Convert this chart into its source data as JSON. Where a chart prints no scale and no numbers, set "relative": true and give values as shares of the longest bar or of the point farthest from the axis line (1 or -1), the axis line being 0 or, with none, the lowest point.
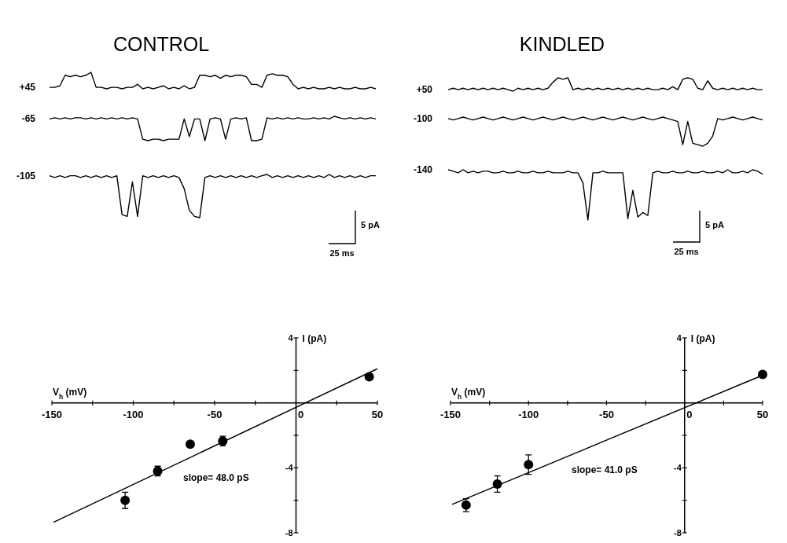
{
  "chart_data": [
    {
      "type": "line",
      "title": "CONTROL",
      "relative": true,
      "categories": [
        null,
        null,
        null,
        null,
        null,
        null,
        null,
        null,
        null,
        null,
        null,
        null,
        null,
        null,
        null,
        null,
        null,
        null,
        null,
        null,
        null,
        null,
        null,
        null,
        null,
        null,
        null,
        null,
        null,
        null,
        null,
        null,
        null,
        null,
        null,
        null,
        null,
        null,
        null,
        null,
        null,
        null,
        null,
        null,
        null,
        null,
        null,
        null,
        null,
        null,
        null,
        null,
        null,
        null,
        null,
        null,
        null,
        null,
        null,
        null,
        null,
        null,
        null,
        null
      ],
      "series": [
        {
          "name": "+45",
          "color": "#000000",
          "values": [
            0.09,
            0.09,
            0.18,
            0.82,
            0.73,
            0.82,
            0.73,
            0.82,
            1,
            0.09,
            0.09,
            0,
            0.09,
            0.09,
            0,
            0.09,
            0.09,
            0.27,
            0,
            0.09,
            0,
            0.09,
            0.18,
            0,
            0.09,
            0,
            0.18,
            0,
            0.09,
            0.82,
            0.82,
            0.73,
            0.82,
            0.64,
            0.82,
            0.73,
            0.82,
            0.82,
            0.73,
            0.27,
            0.27,
            0.09,
            0.82,
            0.91,
            0.82,
            0.82,
            0.73,
            0.27,
            0,
            0.09,
            0,
            0.09,
            0,
            0,
            0.09,
            0,
            0.09,
            0,
            0,
            0.09,
            0,
            0,
            0.09,
            0
          ]
        }
      ]
    },
    {
      "type": "line",
      "relative": true,
      "categories": [
        null,
        null,
        null,
        null,
        null,
        null,
        null,
        null,
        null,
        null,
        null,
        null,
        null,
        null,
        null,
        null,
        null,
        null,
        null,
        null,
        null,
        null,
        null,
        null,
        null,
        null,
        null,
        null,
        null,
        null,
        null,
        null,
        null,
        null,
        null,
        null,
        null,
        null,
        null,
        null,
        null,
        null,
        null,
        null,
        null,
        null,
        null,
        null,
        null,
        null,
        null,
        null,
        null,
        null,
        null,
        null,
        null,
        null,
        null,
        null,
        null,
        null,
        null,
        null
      ],
      "series": [
        {
          "name": "-65",
          "color": "#000000",
          "values": [
            0.89,
            0.94,
            0.89,
            0.94,
            0.89,
            0.94,
            0.94,
            0.89,
            0.94,
            0.89,
            0.94,
            0.89,
            0.94,
            0.89,
            0.94,
            0.89,
            0.94,
            0.89,
            0.06,
            0,
            0.06,
            0.06,
            0,
            0.06,
            0.06,
            0.06,
            0.89,
            0.17,
            0.89,
            0.89,
            0,
            0.89,
            0.94,
            0.89,
            0.06,
            0.89,
            0.94,
            0.89,
            0.94,
            0,
            0,
            0.06,
            0.94,
            0.89,
            0.94,
            0.89,
            0.94,
            0.89,
            0.94,
            0.89,
            0.89,
            0.94,
            0.89,
            0.94,
            0.89,
            1,
            0.94,
            0.89,
            0.94,
            0.89,
            0.94,
            0.89,
            0.94,
            0.89
          ]
        }
      ]
    },
    {
      "type": "line",
      "relative": true,
      "annotations": [
        "5 pA",
        "25 ms"
      ],
      "categories": [
        null,
        null,
        null,
        null,
        null,
        null,
        null,
        null,
        null,
        null,
        null,
        null,
        null,
        null,
        null,
        null,
        null,
        null,
        null,
        null,
        null,
        null,
        null,
        null,
        null,
        null,
        null,
        null,
        null,
        null,
        null,
        null,
        null,
        null,
        null,
        null,
        null,
        null,
        null,
        null,
        null,
        null,
        null,
        null,
        null,
        null,
        null,
        null,
        null,
        null,
        null,
        null,
        null,
        null,
        null,
        null,
        null,
        null,
        null,
        null,
        null,
        null,
        null,
        null
      ],
      "series": [
        {
          "name": "-105",
          "color": "#000000",
          "values": [
            0.97,
            0.93,
            0.97,
            0.93,
            0.97,
            0.97,
            0.93,
            0.97,
            0.93,
            0.97,
            0.93,
            0.97,
            0.93,
            0.97,
            0.07,
            0.03,
            0.83,
            0.03,
            0.97,
            0.93,
            0.97,
            0.93,
            0.97,
            0.93,
            0.97,
            0.93,
            0.67,
            0.17,
            0.03,
            0,
            0.93,
            0.97,
            0.93,
            0.97,
            0.93,
            0.97,
            0.93,
            0.97,
            0.93,
            0.97,
            0.93,
            0.97,
            1,
            0.93,
            0.97,
            0.93,
            0.97,
            0.93,
            0.97,
            0.93,
            0.97,
            0.93,
            0.97,
            0.93,
            1,
            0.93,
            0.97,
            0.93,
            0.97,
            0.93,
            0.97,
            0.93,
            0.97,
            0.97
          ]
        }
      ]
    },
    {
      "type": "line",
      "title": "KINDLED",
      "relative": true,
      "categories": [
        null,
        null,
        null,
        null,
        null,
        null,
        null,
        null,
        null,
        null,
        null,
        null,
        null,
        null,
        null,
        null,
        null,
        null,
        null,
        null,
        null,
        null,
        null,
        null,
        null,
        null,
        null,
        null,
        null,
        null,
        null,
        null,
        null,
        null,
        null,
        null,
        null,
        null,
        null,
        null,
        null,
        null,
        null,
        null,
        null,
        null,
        null,
        null,
        null,
        null,
        null,
        null,
        null,
        null,
        null,
        null,
        null,
        null,
        null,
        null,
        null,
        null,
        null,
        null
      ],
      "series": [
        {
          "name": "+50",
          "color": "#000000",
          "values": [
            0.11,
            0.22,
            0.11,
            0.22,
            0.11,
            0.22,
            0.11,
            0.22,
            0.11,
            0.22,
            0.11,
            0.22,
            0.11,
            0,
            0.22,
            0.11,
            0.22,
            0.11,
            0.22,
            0.11,
            0.22,
            0.67,
            1,
            0.89,
            1,
            0.11,
            0.22,
            0.11,
            0.22,
            0.11,
            0.22,
            0.11,
            0.22,
            0.11,
            0.22,
            0.11,
            0.22,
            0.11,
            0.22,
            0.11,
            0.22,
            0.11,
            0.11,
            0.22,
            0.11,
            0.33,
            0.11,
            0.89,
            1,
            0.89,
            0.22,
            0.11,
            0.78,
            0.22,
            0.11,
            0.22,
            0.11,
            0.22,
            0.11,
            0.22,
            0.11,
            0.22,
            0.11,
            0.11
          ]
        }
      ]
    },
    {
      "type": "line",
      "relative": true,
      "categories": [
        null,
        null,
        null,
        null,
        null,
        null,
        null,
        null,
        null,
        null,
        null,
        null,
        null,
        null,
        null,
        null,
        null,
        null,
        null,
        null,
        null,
        null,
        null,
        null,
        null,
        null,
        null,
        null,
        null,
        null,
        null,
        null,
        null,
        null,
        null,
        null,
        null,
        null,
        null,
        null,
        null,
        null,
        null,
        null,
        null,
        null,
        null,
        null,
        null,
        null,
        null,
        null,
        null,
        null,
        null,
        null,
        null,
        null,
        null,
        null,
        null,
        null,
        null,
        null
      ],
      "series": [
        {
          "name": "-100",
          "color": "#000000",
          "values": [
            0.95,
            0.9,
            0.95,
            1,
            0.95,
            0.9,
            0.95,
            1,
            0.95,
            0.9,
            0.95,
            1,
            0.95,
            0.9,
            0.95,
            1,
            0.95,
            0.9,
            0.95,
            1,
            0.95,
            0.9,
            0.95,
            1,
            0.95,
            0.9,
            0.95,
            1,
            0.95,
            0.9,
            0.95,
            1,
            0.95,
            0.9,
            0.95,
            1,
            0.95,
            0.9,
            0.95,
            1,
            0.95,
            0.9,
            0.95,
            1,
            0.95,
            0.9,
            0.85,
            0.05,
            0.85,
            0.1,
            0.05,
            0,
            0.1,
            0.35,
            0.95,
            0.9,
            0.95,
            1,
            0.95,
            0.9,
            0.95,
            1,
            0.95,
            0.9
          ]
        }
      ]
    },
    {
      "type": "line",
      "relative": true,
      "annotations": [
        "5 pA",
        "25 ms"
      ],
      "categories": [
        null,
        null,
        null,
        null,
        null,
        null,
        null,
        null,
        null,
        null,
        null,
        null,
        null,
        null,
        null,
        null,
        null,
        null,
        null,
        null,
        null,
        null,
        null,
        null,
        null,
        null,
        null,
        null,
        null,
        null,
        null,
        null,
        null,
        null,
        null,
        null,
        null,
        null,
        null,
        null,
        null,
        null,
        null,
        null,
        null,
        null,
        null,
        null,
        null,
        null,
        null,
        null,
        null,
        null,
        null,
        null,
        null,
        null,
        null,
        null,
        null,
        null,
        null,
        null
      ],
      "series": [
        {
          "name": "-140",
          "color": "#000000",
          "values": [
            1,
            0.97,
            0.94,
            1,
            0.94,
            0.97,
            0.94,
            0.97,
            0.97,
            0.94,
            0.94,
            0.97,
            0.94,
            0.94,
            0.97,
            0.94,
            0.94,
            0.97,
            0.94,
            0.94,
            0.97,
            0.94,
            0.94,
            0.94,
            0.97,
            0.94,
            0.94,
            0.74,
            0,
            0.94,
            0.94,
            0.97,
            0.94,
            0.94,
            0.94,
            0.94,
            0.03,
            0.59,
            0.06,
            0.15,
            0.09,
            0.94,
            0.97,
            0.94,
            0.94,
            0.97,
            0.94,
            0.94,
            0.97,
            0.94,
            0.94,
            0.97,
            0.94,
            0.94,
            0.97,
            0.94,
            1,
            0.94,
            0.94,
            0.97,
            0.94,
            1,
            0.97,
            0.91
          ]
        }
      ]
    },
    {
      "type": "scatter",
      "xlabel": "V$_{h}$ (mV)",
      "ylabel": "I (pA)",
      "xlim": [
        -150,
        50
      ],
      "ylim": [
        -8,
        4
      ],
      "annotations": [
        "slope= 48.0 pS"
      ],
      "xticks": [
        -150,
        {
          "value": -125,
          "label": null
        },
        -100,
        {
          "value": -75,
          "label": null
        },
        -50,
        {
          "value": -25,
          "label": null
        },
        0,
        {
          "value": 25,
          "label": null
        },
        50
      ],
      "yticks": [
        4,
        {
          "value": 2,
          "label": null
        },
        {
          "value": -2,
          "label": null
        },
        -4,
        {
          "value": -6,
          "label": null
        },
        -8
      ],
      "series": [
        {
          "type": "scatter",
          "marker": "circle",
          "color": "#000000",
          "x": [
            -105,
            -85,
            -65,
            -45,
            45
          ],
          "values": [
            -6.0,
            -4.2,
            -2.55,
            -2.35,
            1.6
          ],
          "errors": [
            0.5,
            0.3,
            null,
            0.3,
            null
          ]
        },
        {
          "type": "line",
          "color": "#000000",
          "x": [
            -149,
            50
          ],
          "values": [
            -7.35,
            2.1
          ]
        }
      ]
    },
    {
      "type": "scatter",
      "xlabel": "V$_{h}$ (mV)",
      "ylabel": "I (pA)",
      "xlim": [
        -150,
        50
      ],
      "ylim": [
        -8,
        4
      ],
      "annotations": [
        "slope= 41.0 pS"
      ],
      "xticks": [
        -150,
        {
          "value": -125,
          "label": null
        },
        -100,
        {
          "value": -75,
          "label": null
        },
        -50,
        {
          "value": -25,
          "label": null
        },
        0,
        {
          "value": 25,
          "label": null
        },
        50
      ],
      "yticks": [
        4,
        {
          "value": 2,
          "label": null
        },
        {
          "value": -2,
          "label": null
        },
        -4,
        {
          "value": -6,
          "label": null
        },
        -8
      ],
      "series": [
        {
          "type": "scatter",
          "marker": "circle",
          "color": "#000000",
          "x": [
            -140,
            -120,
            -100,
            50
          ],
          "values": [
            -6.3,
            -5.0,
            -3.8,
            1.75
          ],
          "errors": [
            0.4,
            0.5,
            0.6,
            null
          ]
        },
        {
          "type": "line",
          "color": "#000000",
          "x": [
            -149,
            50
          ],
          "values": [
            -6.25,
            1.7
          ]
        }
      ]
    }
  ]
}
